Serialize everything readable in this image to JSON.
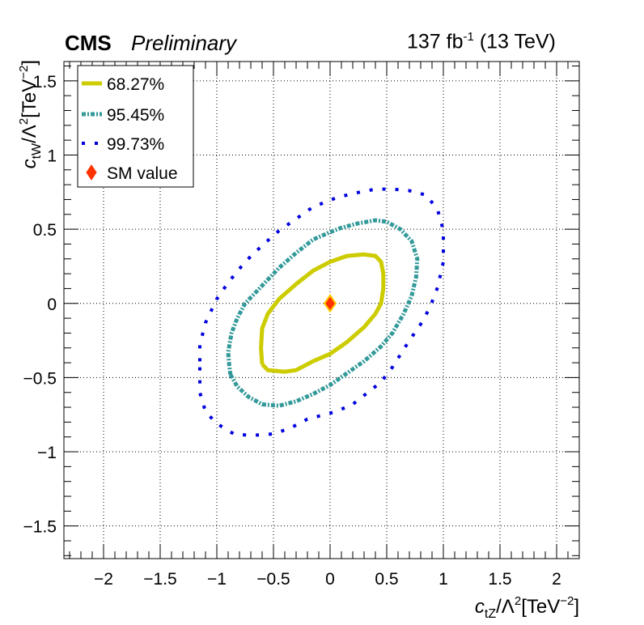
{
  "header": {
    "experiment": "CMS",
    "status": "Preliminary",
    "lumi_value": "137 fb",
    "lumi_exp": "-1",
    "energy": "(13 TeV)"
  },
  "colors": {
    "cl68": "#cccc00",
    "cl95": "#339999",
    "cl99": "#0000dd",
    "sm_fill": "#ff3300",
    "sm_edge": "#ffcc00"
  },
  "chart_data": {
    "type": "scatter",
    "xlabel": "c_tZ/Λ²[TeV⁻²]",
    "ylabel": "c_tW/Λ²[TeV⁻²]",
    "xlim": [
      -2.35,
      2.2
    ],
    "ylim": [
      -1.72,
      1.63
    ],
    "x_ticks": [
      -2,
      -1.5,
      -1,
      -0.5,
      0,
      0.5,
      1,
      1.5,
      2
    ],
    "x_tick_labels": [
      "−2",
      "−1.5",
      "−1",
      "−0.5",
      "0",
      "0.5",
      "1",
      "1.5",
      "2"
    ],
    "y_ticks": [
      -1.5,
      -1,
      -0.5,
      0,
      0.5,
      1,
      1.5
    ],
    "y_tick_labels": [
      "−1.5",
      "−1",
      "−0.5",
      "0",
      "0.5",
      "1",
      "1.5"
    ],
    "grid": true,
    "legend_position": "top-left",
    "series": [
      {
        "name": "68.27%",
        "style": "solid",
        "points": [
          [
            -0.6,
            -0.41
          ],
          [
            -0.55,
            -0.45
          ],
          [
            -0.4,
            -0.46
          ],
          [
            -0.3,
            -0.45
          ],
          [
            -0.15,
            -0.39
          ],
          [
            0,
            -0.34
          ],
          [
            0.15,
            -0.26
          ],
          [
            0.3,
            -0.16
          ],
          [
            0.4,
            -0.07
          ],
          [
            0.45,
            0.0
          ],
          [
            0.47,
            0.1
          ],
          [
            0.47,
            0.2
          ],
          [
            0.45,
            0.28
          ],
          [
            0.4,
            0.32
          ],
          [
            0.3,
            0.33
          ],
          [
            0.15,
            0.32
          ],
          [
            0,
            0.28
          ],
          [
            -0.15,
            0.22
          ],
          [
            -0.3,
            0.13
          ],
          [
            -0.45,
            0.03
          ],
          [
            -0.55,
            -0.07
          ],
          [
            -0.6,
            -0.17
          ],
          [
            -0.61,
            -0.3
          ],
          [
            -0.6,
            -0.41
          ]
        ]
      },
      {
        "name": "95.45%",
        "style": "dash-dot",
        "points": [
          [
            -0.88,
            -0.48
          ],
          [
            -0.82,
            -0.56
          ],
          [
            -0.72,
            -0.63
          ],
          [
            -0.6,
            -0.68
          ],
          [
            -0.45,
            -0.69
          ],
          [
            -0.3,
            -0.66
          ],
          [
            -0.15,
            -0.61
          ],
          [
            0,
            -0.55
          ],
          [
            0.15,
            -0.47
          ],
          [
            0.3,
            -0.39
          ],
          [
            0.45,
            -0.29
          ],
          [
            0.55,
            -0.2
          ],
          [
            0.65,
            -0.07
          ],
          [
            0.72,
            0.05
          ],
          [
            0.76,
            0.18
          ],
          [
            0.77,
            0.3
          ],
          [
            0.72,
            0.42
          ],
          [
            0.62,
            0.5
          ],
          [
            0.5,
            0.55
          ],
          [
            0.4,
            0.56
          ],
          [
            0.25,
            0.54
          ],
          [
            0.1,
            0.51
          ],
          [
            0,
            0.48
          ],
          [
            -0.15,
            0.43
          ],
          [
            -0.3,
            0.34
          ],
          [
            -0.45,
            0.24
          ],
          [
            -0.6,
            0.12
          ],
          [
            -0.75,
            0.0
          ],
          [
            -0.82,
            -0.1
          ],
          [
            -0.87,
            -0.2
          ],
          [
            -0.9,
            -0.33
          ],
          [
            -0.89,
            -0.42
          ],
          [
            -0.88,
            -0.48
          ]
        ]
      },
      {
        "name": "99.73%",
        "style": "dotted",
        "points": [
          [
            -1.15,
            -0.43
          ],
          [
            -1.15,
            -0.6
          ],
          [
            -1.1,
            -0.73
          ],
          [
            -1.0,
            -0.81
          ],
          [
            -0.85,
            -0.88
          ],
          [
            -0.7,
            -0.89
          ],
          [
            -0.5,
            -0.88
          ],
          [
            -0.35,
            -0.84
          ],
          [
            -0.2,
            -0.78
          ],
          [
            -0.05,
            -0.75
          ],
          [
            0.05,
            -0.73
          ],
          [
            0.2,
            -0.68
          ],
          [
            0.3,
            -0.62
          ],
          [
            0.45,
            -0.53
          ],
          [
            0.55,
            -0.43
          ],
          [
            0.7,
            -0.25
          ],
          [
            0.8,
            -0.14
          ],
          [
            0.88,
            -0.03
          ],
          [
            0.95,
            0.11
          ],
          [
            1.0,
            0.28
          ],
          [
            1.0,
            0.49
          ],
          [
            0.95,
            0.63
          ],
          [
            0.85,
            0.73
          ],
          [
            0.7,
            0.76
          ],
          [
            0.55,
            0.77
          ],
          [
            0.4,
            0.77
          ],
          [
            0.2,
            0.74
          ],
          [
            0.05,
            0.71
          ],
          [
            -0.15,
            0.65
          ],
          [
            -0.3,
            0.57
          ],
          [
            -0.45,
            0.49
          ],
          [
            -0.6,
            0.39
          ],
          [
            -0.75,
            0.28
          ],
          [
            -0.9,
            0.14
          ],
          [
            -1.0,
            0.03
          ],
          [
            -1.1,
            -0.13
          ],
          [
            -1.15,
            -0.28
          ],
          [
            -1.15,
            -0.43
          ]
        ]
      }
    ],
    "sm_point": {
      "name": "SM value",
      "x": 0,
      "y": 0
    },
    "legend_labels": [
      "68.27%",
      "95.45%",
      "99.73%",
      "SM value"
    ]
  }
}
